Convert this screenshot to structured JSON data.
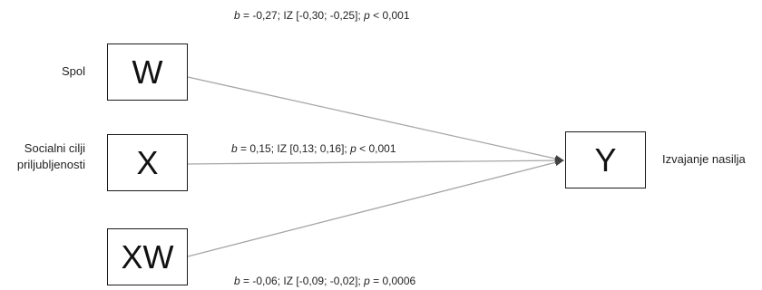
{
  "nodes": {
    "w": {
      "symbol": "W",
      "label": "Spol"
    },
    "x": {
      "symbol": "X",
      "label_line1": "Socialni cilji",
      "label_line2": "priljubljenosti"
    },
    "xw": {
      "symbol": "XW"
    },
    "y": {
      "symbol": "Y",
      "label": "Izvajanje nasilja"
    }
  },
  "paths": {
    "w_to_y": {
      "b_letter": "b",
      "b_text": " = -0,27; IZ [-0,30; -0,25]; ",
      "p_letter": "p",
      "p_text": " < 0,001"
    },
    "x_to_y": {
      "b_letter": "b",
      "b_text": " = 0,15; IZ [0,13; 0,16]; ",
      "p_letter": "p",
      "p_text": " < 0,001"
    },
    "xw_to_y": {
      "b_letter": "b",
      "b_text": " = -0,06; IZ [-0,09; -0,02]; ",
      "p_letter": "p",
      "p_text": " = 0,0006"
    }
  },
  "colors": {
    "arrow_line": "#a6a6a6",
    "arrow_head": "#404040",
    "box_border": "#1a1a1a"
  }
}
